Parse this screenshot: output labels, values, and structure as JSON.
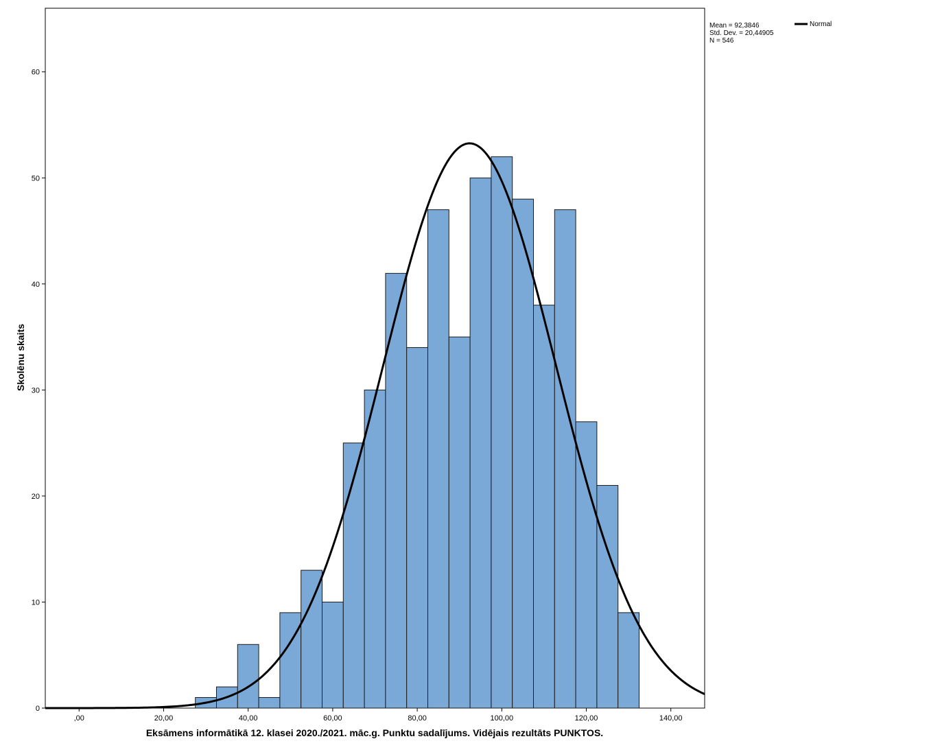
{
  "chart_data": {
    "type": "bar",
    "subtype": "histogram",
    "xlabel": "Eksāmens informātikā 12. klasei 2020./2021. māc.g. Punktu sadalījums. Vidējais rezultāts PUNKTOS.",
    "ylabel": "Skolēnu skaits",
    "xlim": [
      -8,
      148
    ],
    "ylim": [
      0,
      66
    ],
    "x_ticks": [
      0,
      20,
      40,
      60,
      80,
      100,
      120,
      140
    ],
    "x_tick_labels": [
      ",00",
      "20,00",
      "40,00",
      "60,00",
      "80,00",
      "100,00",
      "120,00",
      "140,00"
    ],
    "y_ticks": [
      0,
      10,
      20,
      30,
      40,
      50,
      60
    ],
    "y_tick_labels": [
      "0",
      "10",
      "20",
      "30",
      "40",
      "50",
      "60"
    ],
    "bin_width": 5,
    "bin_starts": [
      27.5,
      32.5,
      37.5,
      42.5,
      47.5,
      52.5,
      57.5,
      62.5,
      67.5,
      72.5,
      77.5,
      82.5,
      87.5,
      92.5,
      97.5,
      102.5,
      107.5,
      112.5,
      117.5,
      122.5,
      127.5
    ],
    "counts": [
      1,
      2,
      6,
      1,
      9,
      13,
      10,
      25,
      30,
      41,
      34,
      47,
      35,
      50,
      52,
      48,
      38,
      47,
      27,
      21,
      9
    ],
    "bar_color": "#7ba9d7",
    "bar_edge_color": "#1a1a1a",
    "curve_color": "#000000",
    "grid": false,
    "legend": {
      "label": "Normal",
      "position": "top-right"
    },
    "stats": {
      "mean_text": "Mean = 92,3846",
      "std_text": "Std. Dev. = 20,44905",
      "n_text": "N = 546",
      "mean": 92.3846,
      "std": 20.44905,
      "n": 546
    }
  }
}
